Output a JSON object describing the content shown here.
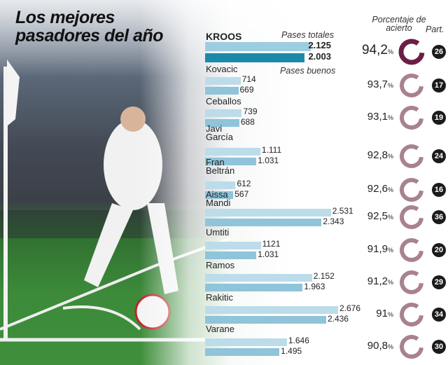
{
  "title_line1": "Los mejores",
  "title_line2": "pasadores del año",
  "chart_data": {
    "type": "bar",
    "legend": {
      "total": "Pases totales",
      "good": "Pases buenos"
    },
    "pct_header": "Porcentaje de acierto",
    "games_header": "Part.",
    "colors": {
      "total": "#bcdce9",
      "good": "#8fc4da",
      "kroos_total": "#9dcde0",
      "kroos_good": "#1b8aaa",
      "ring_highlight": "#6b1f45",
      "ring": "#a8828f"
    },
    "players": [
      {
        "name": "KROOS",
        "total": "2.125",
        "good": "2.003",
        "t": 2125,
        "g": 2003,
        "pct": "94,2",
        "games": "26"
      },
      {
        "name": "Kovacic",
        "total": "714",
        "good": "669",
        "t": 714,
        "g": 669,
        "pct": "93,7",
        "games": "17"
      },
      {
        "name": "Ceballos",
        "total": "739",
        "good": "688",
        "t": 739,
        "g": 688,
        "pct": "93,1",
        "games": "19"
      },
      {
        "name": "Javi\nGarcía",
        "total": "1.111",
        "good": "1.031",
        "t": 1111,
        "g": 1031,
        "pct": "92,8",
        "games": "24"
      },
      {
        "name": "Fran\nBeltrán",
        "total": "612",
        "good": "567",
        "t": 612,
        "g": 567,
        "pct": "92,6",
        "games": "16"
      },
      {
        "name": "Aissa\nMandi",
        "total": "2.531",
        "good": "2.343",
        "t": 2531,
        "g": 2343,
        "pct": "92,5",
        "games": "36"
      },
      {
        "name": "Umtiti",
        "total": "1121",
        "good": "1.031",
        "t": 1121,
        "g": 1031,
        "pct": "91,9",
        "games": "20"
      },
      {
        "name": "Ramos",
        "total": "2.152",
        "good": "1.963",
        "t": 2152,
        "g": 1963,
        "pct": "91,2",
        "games": "29"
      },
      {
        "name": "Rakitic",
        "total": "2.676",
        "good": "2.436",
        "t": 2676,
        "g": 2436,
        "pct": "91",
        "games": "34"
      },
      {
        "name": "Varane",
        "total": "1.646",
        "good": "1.495",
        "t": 1646,
        "g": 1495,
        "pct": "90,8",
        "games": "30"
      }
    ]
  }
}
